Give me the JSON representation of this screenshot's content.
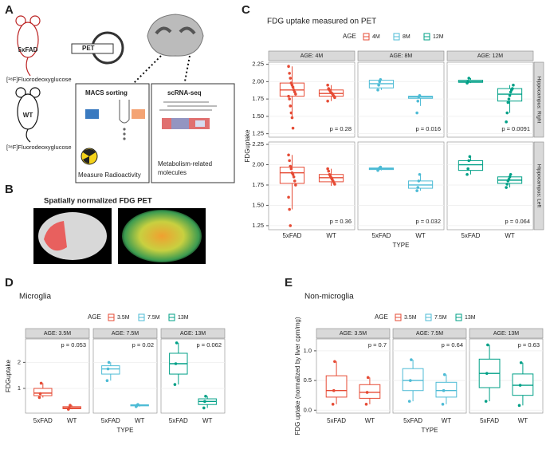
{
  "panel_labels": [
    "A",
    "B",
    "C",
    "D",
    "E"
  ],
  "diagram": {
    "mouse_top": "5xFAD",
    "mouse_bottom": "WT",
    "tracer": "[¹⁸F]Fluorodeoxyglucose",
    "pet": "PET",
    "macs_title": "MACS sorting",
    "macs_caption": "Measure Radioactivity",
    "scrna_title": "scRNA-seq",
    "scrna_caption": [
      "Metabolism-related",
      "molecules"
    ],
    "pet_images_title": "Spatially normalized FDG PET"
  },
  "chart_data": [
    {
      "type": "box",
      "title": "FDG uptake measured on PET",
      "legend_title": "AGE",
      "x_label": "TYPE",
      "y_label": "FDGuptake",
      "categories": [
        "5xFAD",
        "WT"
      ],
      "facet_cols": [
        "AGE: 4M",
        "AGE: 8M",
        "AGE: 12M"
      ],
      "facet_rows": [
        "Hippocampus: Right",
        "Hippocampus: Left"
      ],
      "p_position": "bottom-right",
      "ylim": [
        1.2,
        2.28
      ],
      "yticks": [
        1.25,
        {
          "value": 1.5,
          "label": "1.50"
        },
        1.75,
        {
          "value": 2,
          "label": "2.00"
        },
        2.25
      ],
      "series": [
        {
          "name": "4M",
          "color": "#E64B35",
          "facets": [
            {
              "p": "p = 0.28",
              "groups": [
                {
                  "stats": [
                    1.48,
                    1.79,
                    1.88,
                    1.98,
                    2.22
                  ],
                  "points": [
                    2.22,
                    2.12,
                    2.05,
                    1.98,
                    1.95,
                    1.92,
                    1.88,
                    1.85,
                    1.82,
                    1.79,
                    1.75,
                    1.65,
                    1.55,
                    1.48,
                    1.33
                  ]
                },
                {
                  "stats": [
                    1.72,
                    1.79,
                    1.83,
                    1.88,
                    1.95
                  ],
                  "points": [
                    1.95,
                    1.9,
                    1.88,
                    1.86,
                    1.84,
                    1.83,
                    1.81,
                    1.79,
                    1.77,
                    1.72
                  ]
                }
              ]
            },
            {
              "p": "p = 0.36",
              "groups": [
                {
                  "stats": [
                    1.45,
                    1.77,
                    1.9,
                    1.97,
                    2.12
                  ],
                  "points": [
                    2.12,
                    2.05,
                    1.98,
                    1.95,
                    1.9,
                    1.88,
                    1.85,
                    1.8,
                    1.75,
                    1.6,
                    1.45,
                    1.25
                  ]
                },
                {
                  "stats": [
                    1.74,
                    1.79,
                    1.84,
                    1.88,
                    1.95
                  ],
                  "points": [
                    1.95,
                    1.92,
                    1.88,
                    1.86,
                    1.84,
                    1.82,
                    1.8,
                    1.78,
                    1.76
                  ]
                }
              ]
            }
          ]
        },
        {
          "name": "8M",
          "color": "#4DBBD5",
          "facets": [
            {
              "p": "p = 0.016",
              "groups": [
                {
                  "stats": [
                    1.88,
                    1.91,
                    1.97,
                    2.02,
                    2.03
                  ],
                  "points": [
                    1.88,
                    1.95,
                    2.0,
                    2.03
                  ]
                },
                {
                  "stats": [
                    1.65,
                    1.76,
                    1.78,
                    1.79,
                    1.81
                  ],
                  "points": [
                    1.55,
                    1.72,
                    1.78,
                    1.8
                  ]
                }
              ]
            },
            {
              "p": "p = 0.032",
              "groups": [
                {
                  "stats": [
                    1.93,
                    1.94,
                    1.95,
                    1.96,
                    1.97
                  ],
                  "points": [
                    1.93,
                    1.95,
                    1.96,
                    1.97
                  ]
                },
                {
                  "stats": [
                    1.68,
                    1.71,
                    1.75,
                    1.8,
                    1.88
                  ],
                  "points": [
                    1.68,
                    1.72,
                    1.8,
                    1.88
                  ]
                }
              ]
            }
          ]
        },
        {
          "name": "12M",
          "color": "#00A087",
          "facets": [
            {
              "p": "p = 0.0091",
              "groups": [
                {
                  "stats": [
                    1.98,
                    1.99,
                    2.0,
                    2.02,
                    2.05
                  ],
                  "points": [
                    1.98,
                    2.0,
                    2.05
                  ]
                },
                {
                  "stats": [
                    1.55,
                    1.72,
                    1.82,
                    1.9,
                    1.95
                  ],
                  "points": [
                    1.42,
                    1.55,
                    1.7,
                    1.75,
                    1.8,
                    1.85,
                    1.88,
                    1.9,
                    1.95
                  ]
                }
              ]
            },
            {
              "p": "p = 0.064",
              "groups": [
                {
                  "stats": [
                    1.88,
                    1.93,
                    2.0,
                    2.05,
                    2.1
                  ],
                  "points": [
                    1.88,
                    1.95,
                    2.05,
                    2.1
                  ]
                },
                {
                  "stats": [
                    1.72,
                    1.77,
                    1.81,
                    1.85,
                    1.88
                  ],
                  "points": [
                    1.72,
                    1.76,
                    1.8,
                    1.82,
                    1.85,
                    1.88
                  ]
                }
              ]
            }
          ]
        }
      ]
    },
    {
      "type": "box",
      "title": "Microglia",
      "legend_title": "AGE",
      "x_label": "TYPE",
      "y_label": "FDGuptake",
      "categories": [
        "5xFAD",
        "WT"
      ],
      "facet_cols": [
        "AGE: 3.5M",
        "AGE: 7.5M",
        "AGE: 13M"
      ],
      "p_position": "top-right",
      "ylim": [
        0.05,
        2.9
      ],
      "yticks": [
        1,
        2
      ],
      "series": [
        {
          "name": "3.5M",
          "color": "#E64B35",
          "facets": [
            {
              "p": "p = 0.053",
              "groups": [
                {
                  "stats": [
                    0.65,
                    0.72,
                    0.82,
                    1.0,
                    1.2
                  ],
                  "points": [
                    0.65,
                    0.8,
                    1.2
                  ]
                },
                {
                  "stats": [
                    0.2,
                    0.22,
                    0.25,
                    0.3,
                    0.35
                  ],
                  "points": [
                    0.2,
                    0.25,
                    0.35
                  ]
                }
              ]
            }
          ]
        },
        {
          "name": "7.5M",
          "color": "#4DBBD5",
          "facets": [
            {
              "p": "p = 0.02",
              "groups": [
                {
                  "stats": [
                    1.3,
                    1.55,
                    1.75,
                    1.87,
                    2.0
                  ],
                  "points": [
                    1.3,
                    1.75,
                    2.0
                  ]
                },
                {
                  "stats": [
                    0.3,
                    0.33,
                    0.35,
                    0.37,
                    0.38
                  ],
                  "points": [
                    0.3,
                    0.35,
                    0.38
                  ]
                }
              ]
            }
          ]
        },
        {
          "name": "13M",
          "color": "#00A087",
          "facets": [
            {
              "p": "p = 0.062",
              "groups": [
                {
                  "stats": [
                    1.15,
                    1.55,
                    1.95,
                    2.35,
                    2.75
                  ],
                  "points": [
                    1.15,
                    1.95,
                    2.75
                  ]
                },
                {
                  "stats": [
                    0.25,
                    0.38,
                    0.5,
                    0.6,
                    0.7
                  ],
                  "points": [
                    0.25,
                    0.5,
                    0.7
                  ]
                }
              ]
            }
          ]
        }
      ]
    },
    {
      "type": "box",
      "title": "Non-microglia",
      "legend_title": "AGE",
      "x_label": "TYPE",
      "y_label": "FDG uptake (normalized by liver cpm/mg)",
      "categories": [
        "5xFAD",
        "WT"
      ],
      "facet_cols": [
        "AGE: 3.5M",
        "AGE: 7.5M",
        "AGE: 13M"
      ],
      "p_position": "top-right",
      "ylim": [
        -0.05,
        1.2
      ],
      "yticks": [
        {
          "value": 0,
          "label": "0.0"
        },
        0.5,
        {
          "value": 1,
          "label": "1.0"
        }
      ],
      "series": [
        {
          "name": "3.5M",
          "color": "#E64B35",
          "facets": [
            {
              "p": "p = 0.7",
              "groups": [
                {
                  "stats": [
                    0.1,
                    0.22,
                    0.33,
                    0.58,
                    0.82
                  ],
                  "points": [
                    0.1,
                    0.33,
                    0.82
                  ]
                },
                {
                  "stats": [
                    0.1,
                    0.2,
                    0.3,
                    0.43,
                    0.55
                  ],
                  "points": [
                    0.1,
                    0.3,
                    0.55
                  ]
                }
              ]
            }
          ]
        },
        {
          "name": "7.5M",
          "color": "#4DBBD5",
          "facets": [
            {
              "p": "p = 0.64",
              "groups": [
                {
                  "stats": [
                    0.15,
                    0.33,
                    0.5,
                    0.7,
                    0.85
                  ],
                  "points": [
                    0.15,
                    0.5,
                    0.85
                  ]
                },
                {
                  "stats": [
                    0.1,
                    0.22,
                    0.33,
                    0.47,
                    0.6
                  ],
                  "points": [
                    0.1,
                    0.33,
                    0.6
                  ]
                }
              ]
            }
          ]
        },
        {
          "name": "13M",
          "color": "#00A087",
          "facets": [
            {
              "p": "p = 0.63",
              "groups": [
                {
                  "stats": [
                    0.15,
                    0.38,
                    0.62,
                    0.86,
                    1.1
                  ],
                  "points": [
                    0.15,
                    0.62,
                    1.1
                  ]
                },
                {
                  "stats": [
                    0.08,
                    0.25,
                    0.42,
                    0.61,
                    0.8
                  ],
                  "points": [
                    0.08,
                    0.42,
                    0.8
                  ]
                }
              ]
            }
          ]
        }
      ]
    }
  ]
}
